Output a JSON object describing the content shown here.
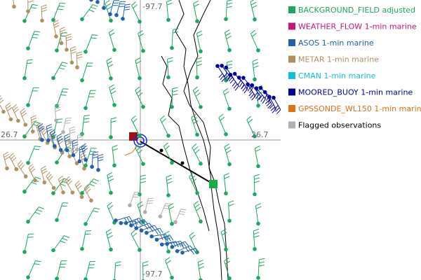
{
  "map": {
    "labels": {
      "top_lon": "-97.7",
      "bottom_lon": "-97.7",
      "left_lat": "26.7",
      "right_lat": "26.7"
    },
    "legend": [
      {
        "label": "BACKGROUND_FIELD adjusted",
        "color": "#1aa860"
      },
      {
        "label": "WEATHER_FLOW 1-min marine",
        "color": "#c8157a"
      },
      {
        "label": "ASOS 1-min marine",
        "color": "#2060b0"
      },
      {
        "label": "METAR 1-min marine",
        "color": "#b09060"
      },
      {
        "label": "CMAN 1-min marine",
        "color": "#10c0e0"
      },
      {
        "label": "MOORED_BUOY 1-min marine",
        "color": "#0000a0"
      },
      {
        "label": "GPSSONDE_WL150 1-min marine",
        "color": "#e07010"
      },
      {
        "label": "Flagged observations",
        "color": "#b0b0b0",
        "text_color": "#000000"
      }
    ]
  }
}
